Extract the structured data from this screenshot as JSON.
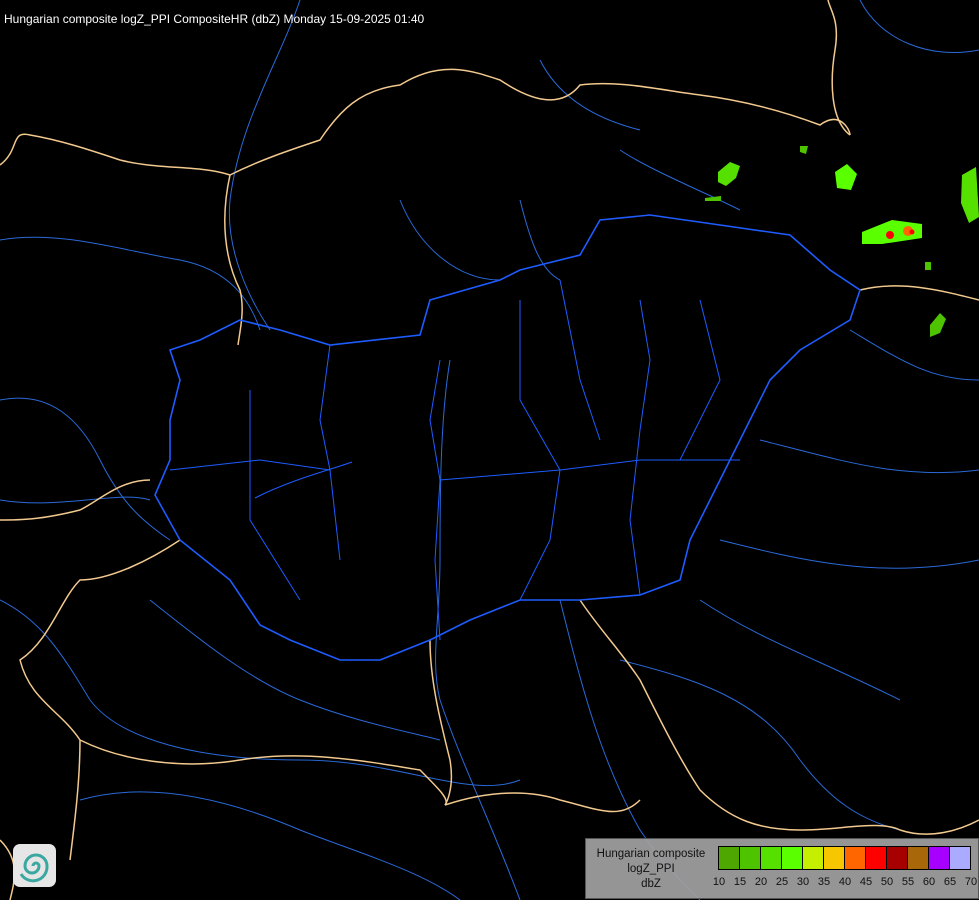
{
  "title": "Hungarian composite logZ_PPI CompositeHR (dbZ) Monday 15-09-2025 01:40",
  "legend": {
    "line1": "Hungarian composite",
    "line2": "logZ_PPI",
    "line3": "dbZ",
    "ticks": [
      "10",
      "15",
      "20",
      "25",
      "30",
      "35",
      "40",
      "45",
      "50",
      "55",
      "60",
      "65",
      "70"
    ],
    "colors": [
      "#4ea600",
      "#4ec300",
      "#55e000",
      "#5aff00",
      "#c6ee00",
      "#f6c600",
      "#ff6600",
      "#ff0000",
      "#a60000",
      "#a8680a",
      "#a800ff",
      "#aaaaff"
    ]
  },
  "map_colors": {
    "country_border": "#f2c98e",
    "hungary_border": "#1e5cff",
    "rivers": "#2a6ad8"
  },
  "icons": {
    "logo": "met-service-swirl-logo"
  }
}
